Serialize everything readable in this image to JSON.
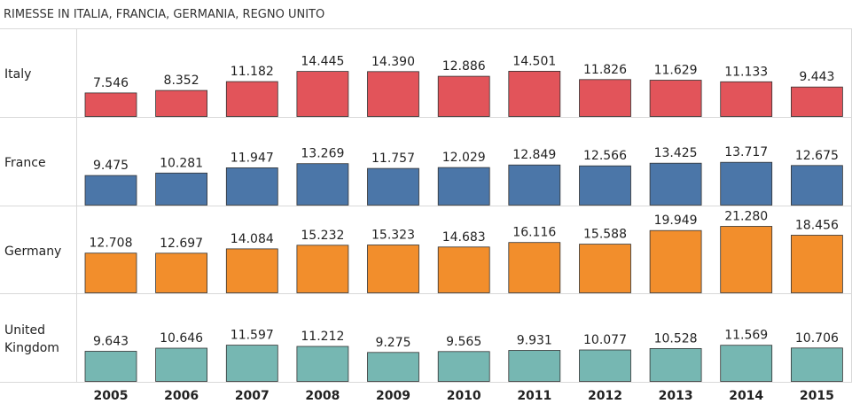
{
  "chart_data": {
    "type": "bar",
    "title": "RIMESSE IN ITALIA, FRANCIA, GERMANIA, REGNO UNITO",
    "categories": [
      "2005",
      "2006",
      "2007",
      "2008",
      "2009",
      "2010",
      "2011",
      "2012",
      "2013",
      "2014",
      "2015"
    ],
    "value_scale_max": 21.28,
    "grid": true,
    "series": [
      {
        "name": "Italy",
        "label_lines": [
          "Italy"
        ],
        "color": "#e2545a",
        "values": [
          7.546,
          8.352,
          11.182,
          14.445,
          14.39,
          12.886,
          14.501,
          11.826,
          11.629,
          11.133,
          9.443
        ],
        "labels": [
          "7.546",
          "8.352",
          "11.182",
          "14.445",
          "14.390",
          "12.886",
          "14.501",
          "11.826",
          "11.629",
          "11.133",
          "9.443"
        ]
      },
      {
        "name": "France",
        "label_lines": [
          "France"
        ],
        "color": "#4b76a8",
        "values": [
          9.475,
          10.281,
          11.947,
          13.269,
          11.757,
          12.029,
          12.849,
          12.566,
          13.425,
          13.717,
          12.675
        ],
        "labels": [
          "9.475",
          "10.281",
          "11.947",
          "13.269",
          "11.757",
          "12.029",
          "12.849",
          "12.566",
          "13.425",
          "13.717",
          "12.675"
        ]
      },
      {
        "name": "Germany",
        "label_lines": [
          "Germany"
        ],
        "color": "#f28e2c",
        "values": [
          12.708,
          12.697,
          14.084,
          15.232,
          15.323,
          14.683,
          16.116,
          15.588,
          19.949,
          21.28,
          18.456
        ],
        "labels": [
          "12.708",
          "12.697",
          "14.084",
          "15.232",
          "15.323",
          "14.683",
          "16.116",
          "15.588",
          "19.949",
          "21.280",
          "18.456"
        ]
      },
      {
        "name": "United Kingdom",
        "label_lines": [
          "United",
          "Kingdom"
        ],
        "color": "#76b7b2",
        "values": [
          9.643,
          10.646,
          11.597,
          11.212,
          9.275,
          9.565,
          9.931,
          10.077,
          10.528,
          11.569,
          10.706
        ],
        "labels": [
          "9.643",
          "10.646",
          "11.597",
          "11.212",
          "9.275",
          "9.565",
          "9.931",
          "10.077",
          "10.528",
          "11.569",
          "10.706"
        ]
      }
    ]
  }
}
